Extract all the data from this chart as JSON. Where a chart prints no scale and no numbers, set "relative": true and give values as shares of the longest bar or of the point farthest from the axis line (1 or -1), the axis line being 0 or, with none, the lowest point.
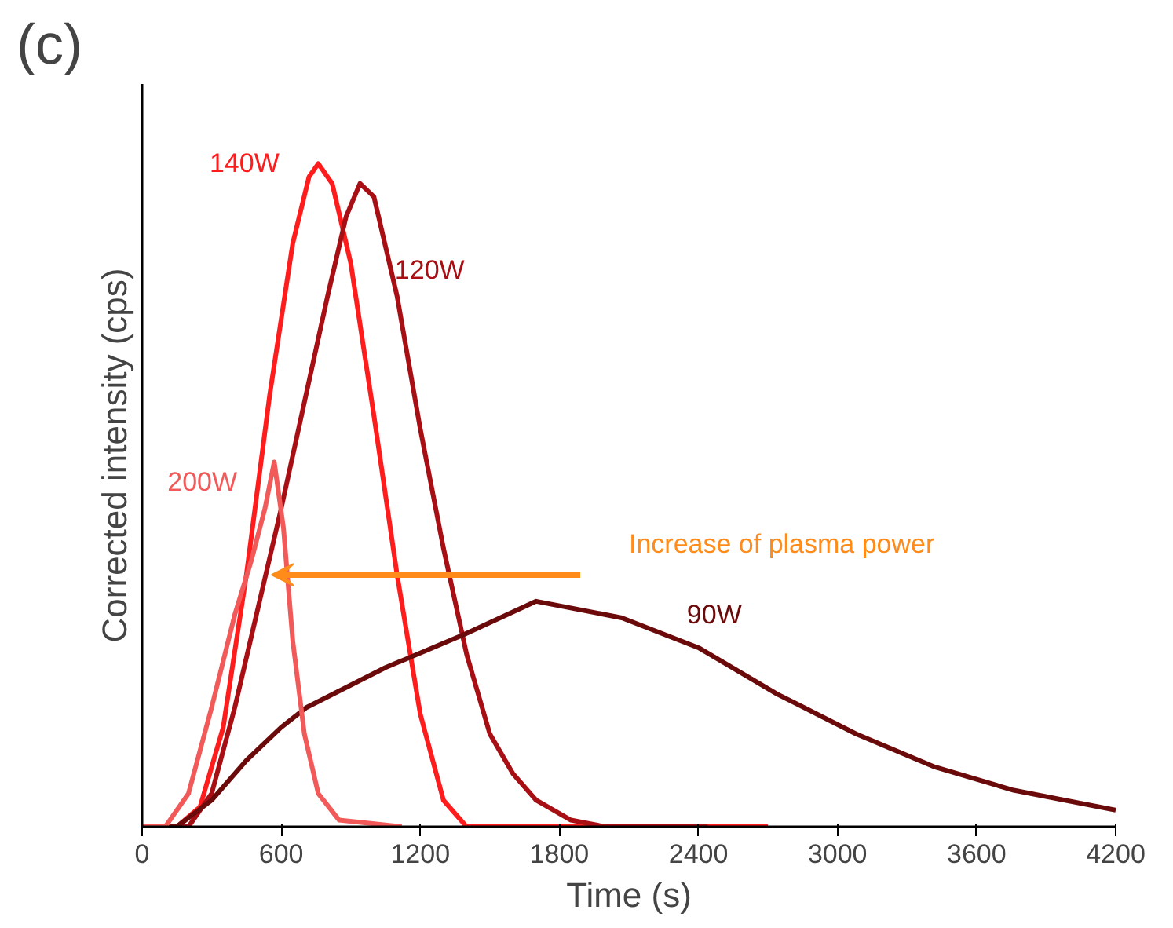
{
  "chart_data": {
    "type": "line",
    "relative": true,
    "xlabel": "Time (s)",
    "ylabel": "Corrected intensity (cps)",
    "xlim": [
      0,
      4200
    ],
    "xticks": [
      0,
      600,
      1200,
      1800,
      2400,
      3000,
      3600,
      4200
    ],
    "grid": false,
    "annotations": [
      "(c)",
      "Increase of plasma power"
    ],
    "series": [
      {
        "name": "140W",
        "color": "#ff1c1c",
        "x": [
          0,
          150,
          250,
          350,
          450,
          550,
          650,
          720,
          760,
          820,
          900,
          1000,
          1100,
          1200,
          1300,
          1400,
          1500,
          2700
        ],
        "values": [
          0,
          0,
          0.03,
          0.15,
          0.38,
          0.65,
          0.88,
          0.98,
          1.0,
          0.97,
          0.85,
          0.62,
          0.38,
          0.17,
          0.04,
          0,
          0,
          0
        ]
      },
      {
        "name": "120W",
        "color": "#a80f14",
        "x": [
          0,
          200,
          300,
          400,
          500,
          600,
          700,
          800,
          880,
          940,
          1000,
          1100,
          1200,
          1300,
          1400,
          1500,
          1600,
          1700,
          1850,
          2000,
          2440
        ],
        "values": [
          0,
          0,
          0.05,
          0.18,
          0.33,
          0.48,
          0.64,
          0.8,
          0.92,
          0.97,
          0.95,
          0.8,
          0.6,
          0.42,
          0.26,
          0.14,
          0.08,
          0.04,
          0.01,
          0,
          0
        ]
      },
      {
        "name": "90W",
        "color": "#6b0a0a",
        "x": [
          0,
          150,
          300,
          450,
          600,
          710,
          1050,
          1390,
          1700,
          2070,
          2400,
          2740,
          3080,
          3420,
          3760,
          4200
        ],
        "values": [
          0,
          0,
          0.04,
          0.1,
          0.15,
          0.18,
          0.24,
          0.29,
          0.34,
          0.315,
          0.27,
          0.2,
          0.14,
          0.09,
          0.055,
          0.025
        ]
      },
      {
        "name": "200W",
        "color": "#f25a5a",
        "x": [
          0,
          100,
          200,
          300,
          400,
          470,
          530,
          570,
          610,
          650,
          700,
          760,
          850,
          1120
        ],
        "values": [
          0,
          0,
          0.05,
          0.18,
          0.32,
          0.4,
          0.48,
          0.55,
          0.45,
          0.28,
          0.14,
          0.05,
          0.01,
          0
        ]
      }
    ]
  }
}
